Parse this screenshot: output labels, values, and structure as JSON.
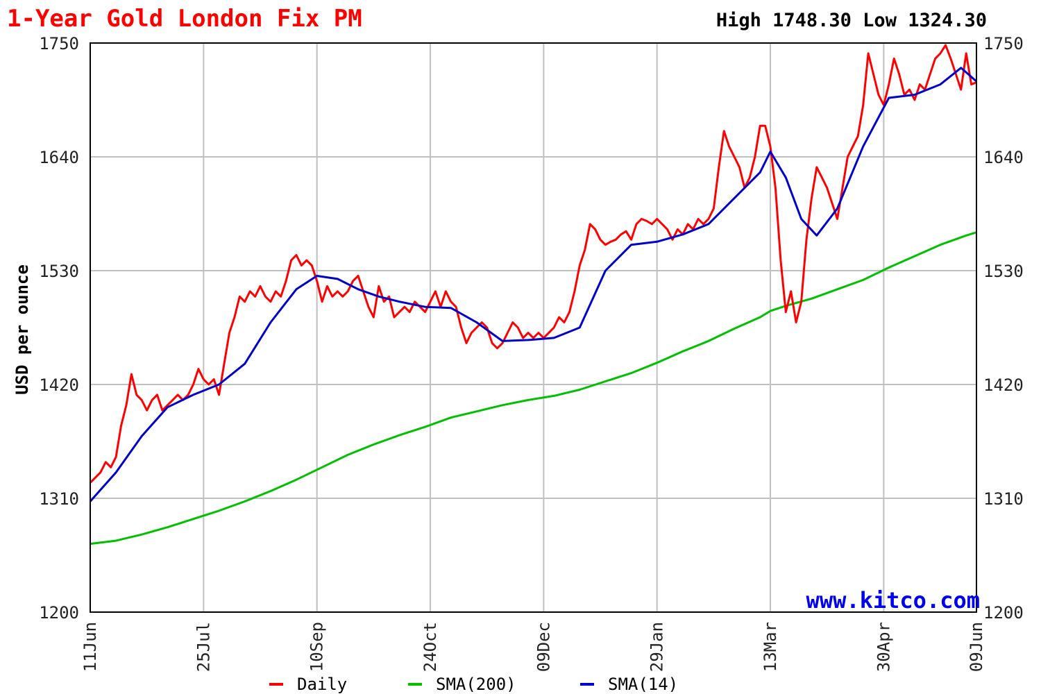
{
  "header": {
    "title": "1-Year Gold London Fix PM",
    "stats": "High 1748.30 Low 1324.30"
  },
  "watermark": "www.kitco.com",
  "colors": {
    "title": "#ff0000",
    "daily": "#ff0000",
    "sma200": "#00c000",
    "sma14": "#0000cc",
    "grid": "#c0c0c0",
    "watermark": "#0000ee",
    "border": "#000000"
  },
  "chart_data": {
    "type": "line",
    "title": "1-Year Gold London Fix PM",
    "ylabel": "USD per ounce",
    "xlabel": "",
    "ylim": [
      1200,
      1750
    ],
    "yticks": [
      "1750",
      "1640",
      "1530",
      "1420",
      "1310",
      "1200"
    ],
    "ytick_values": [
      1750,
      1640,
      1530,
      1420,
      1310,
      1200
    ],
    "xticks": [
      "11Jun",
      "25Jul",
      "10Sep",
      "24Oct",
      "09Dec",
      "29Jan",
      "13Mar",
      "30Apr",
      "09Jun"
    ],
    "xtick_values": [
      0,
      44,
      88,
      132,
      176,
      220,
      264,
      308,
      344
    ],
    "x_domain": [
      0,
      344
    ],
    "legend_position": "bottom",
    "grid": true,
    "series": [
      {
        "name": "Daily",
        "color": "#ff0000",
        "points": [
          [
            0,
            1325
          ],
          [
            2,
            1330
          ],
          [
            4,
            1335
          ],
          [
            6,
            1345
          ],
          [
            8,
            1340
          ],
          [
            10,
            1350
          ],
          [
            12,
            1380
          ],
          [
            14,
            1400
          ],
          [
            16,
            1430
          ],
          [
            18,
            1410
          ],
          [
            20,
            1405
          ],
          [
            22,
            1395
          ],
          [
            24,
            1405
          ],
          [
            26,
            1410
          ],
          [
            28,
            1395
          ],
          [
            30,
            1400
          ],
          [
            32,
            1405
          ],
          [
            34,
            1410
          ],
          [
            36,
            1405
          ],
          [
            38,
            1410
          ],
          [
            40,
            1420
          ],
          [
            42,
            1435
          ],
          [
            44,
            1425
          ],
          [
            46,
            1420
          ],
          [
            48,
            1425
          ],
          [
            50,
            1410
          ],
          [
            52,
            1440
          ],
          [
            54,
            1470
          ],
          [
            56,
            1485
          ],
          [
            58,
            1505
          ],
          [
            60,
            1500
          ],
          [
            62,
            1510
          ],
          [
            64,
            1505
          ],
          [
            66,
            1515
          ],
          [
            68,
            1505
          ],
          [
            70,
            1500
          ],
          [
            72,
            1510
          ],
          [
            74,
            1505
          ],
          [
            76,
            1520
          ],
          [
            78,
            1540
          ],
          [
            80,
            1545
          ],
          [
            82,
            1535
          ],
          [
            84,
            1540
          ],
          [
            86,
            1535
          ],
          [
            88,
            1520
          ],
          [
            90,
            1500
          ],
          [
            92,
            1515
          ],
          [
            94,
            1505
          ],
          [
            96,
            1510
          ],
          [
            98,
            1505
          ],
          [
            100,
            1510
          ],
          [
            102,
            1520
          ],
          [
            104,
            1525
          ],
          [
            106,
            1510
          ],
          [
            108,
            1495
          ],
          [
            110,
            1485
          ],
          [
            112,
            1515
          ],
          [
            114,
            1500
          ],
          [
            116,
            1505
          ],
          [
            118,
            1485
          ],
          [
            120,
            1490
          ],
          [
            122,
            1495
          ],
          [
            124,
            1490
          ],
          [
            126,
            1500
          ],
          [
            128,
            1495
          ],
          [
            130,
            1490
          ],
          [
            132,
            1500
          ],
          [
            134,
            1510
          ],
          [
            136,
            1495
          ],
          [
            138,
            1510
          ],
          [
            140,
            1500
          ],
          [
            142,
            1495
          ],
          [
            144,
            1475
          ],
          [
            146,
            1460
          ],
          [
            148,
            1470
          ],
          [
            150,
            1475
          ],
          [
            152,
            1480
          ],
          [
            154,
            1475
          ],
          [
            156,
            1460
          ],
          [
            158,
            1455
          ],
          [
            160,
            1460
          ],
          [
            162,
            1470
          ],
          [
            164,
            1480
          ],
          [
            166,
            1475
          ],
          [
            168,
            1465
          ],
          [
            170,
            1470
          ],
          [
            172,
            1465
          ],
          [
            174,
            1470
          ],
          [
            176,
            1465
          ],
          [
            178,
            1470
          ],
          [
            180,
            1475
          ],
          [
            182,
            1485
          ],
          [
            184,
            1480
          ],
          [
            186,
            1490
          ],
          [
            188,
            1510
          ],
          [
            190,
            1535
          ],
          [
            192,
            1550
          ],
          [
            194,
            1575
          ],
          [
            196,
            1570
          ],
          [
            198,
            1560
          ],
          [
            200,
            1555
          ],
          [
            202,
            1558
          ],
          [
            204,
            1560
          ],
          [
            206,
            1565
          ],
          [
            208,
            1568
          ],
          [
            210,
            1560
          ],
          [
            212,
            1575
          ],
          [
            214,
            1580
          ],
          [
            216,
            1578
          ],
          [
            218,
            1575
          ],
          [
            220,
            1580
          ],
          [
            222,
            1575
          ],
          [
            224,
            1570
          ],
          [
            226,
            1560
          ],
          [
            228,
            1570
          ],
          [
            230,
            1565
          ],
          [
            232,
            1575
          ],
          [
            234,
            1570
          ],
          [
            236,
            1580
          ],
          [
            238,
            1575
          ],
          [
            240,
            1580
          ],
          [
            242,
            1590
          ],
          [
            244,
            1630
          ],
          [
            246,
            1665
          ],
          [
            248,
            1650
          ],
          [
            250,
            1640
          ],
          [
            252,
            1630
          ],
          [
            254,
            1610
          ],
          [
            256,
            1620
          ],
          [
            258,
            1640
          ],
          [
            260,
            1670
          ],
          [
            262,
            1670
          ],
          [
            264,
            1650
          ],
          [
            266,
            1610
          ],
          [
            268,
            1540
          ],
          [
            270,
            1490
          ],
          [
            272,
            1510
          ],
          [
            274,
            1480
          ],
          [
            276,
            1500
          ],
          [
            278,
            1560
          ],
          [
            280,
            1600
          ],
          [
            282,
            1630
          ],
          [
            284,
            1620
          ],
          [
            286,
            1610
          ],
          [
            288,
            1595
          ],
          [
            290,
            1580
          ],
          [
            292,
            1610
          ],
          [
            294,
            1640
          ],
          [
            296,
            1650
          ],
          [
            298,
            1660
          ],
          [
            300,
            1690
          ],
          [
            302,
            1740
          ],
          [
            304,
            1720
          ],
          [
            306,
            1700
          ],
          [
            308,
            1690
          ],
          [
            310,
            1710
          ],
          [
            312,
            1735
          ],
          [
            314,
            1720
          ],
          [
            316,
            1700
          ],
          [
            318,
            1705
          ],
          [
            320,
            1695
          ],
          [
            322,
            1710
          ],
          [
            324,
            1705
          ],
          [
            326,
            1720
          ],
          [
            328,
            1735
          ],
          [
            330,
            1740
          ],
          [
            332,
            1748
          ],
          [
            334,
            1735
          ],
          [
            336,
            1720
          ],
          [
            338,
            1705
          ],
          [
            340,
            1740
          ],
          [
            342,
            1710
          ],
          [
            344,
            1712
          ]
        ]
      },
      {
        "name": "SMA(200)",
        "color": "#00c000",
        "points": [
          [
            0,
            1266
          ],
          [
            10,
            1269
          ],
          [
            20,
            1275
          ],
          [
            30,
            1282
          ],
          [
            40,
            1290
          ],
          [
            50,
            1298
          ],
          [
            60,
            1307
          ],
          [
            70,
            1317
          ],
          [
            80,
            1328
          ],
          [
            90,
            1340
          ],
          [
            100,
            1352
          ],
          [
            110,
            1362
          ],
          [
            120,
            1371
          ],
          [
            130,
            1379
          ],
          [
            140,
            1388
          ],
          [
            150,
            1394
          ],
          [
            160,
            1400
          ],
          [
            170,
            1405
          ],
          [
            180,
            1409
          ],
          [
            190,
            1415
          ],
          [
            200,
            1423
          ],
          [
            210,
            1431
          ],
          [
            220,
            1441
          ],
          [
            230,
            1452
          ],
          [
            240,
            1462
          ],
          [
            250,
            1474
          ],
          [
            260,
            1485
          ],
          [
            264,
            1491
          ],
          [
            270,
            1496
          ],
          [
            280,
            1503
          ],
          [
            290,
            1512
          ],
          [
            300,
            1521
          ],
          [
            310,
            1533
          ],
          [
            320,
            1544
          ],
          [
            330,
            1555
          ],
          [
            340,
            1564
          ],
          [
            344,
            1567
          ]
        ]
      },
      {
        "name": "SMA(14)",
        "color": "#0000cc",
        "points": [
          [
            0,
            1307
          ],
          [
            10,
            1335
          ],
          [
            20,
            1370
          ],
          [
            30,
            1398
          ],
          [
            40,
            1410
          ],
          [
            50,
            1420
          ],
          [
            60,
            1440
          ],
          [
            70,
            1480
          ],
          [
            80,
            1512
          ],
          [
            88,
            1525
          ],
          [
            96,
            1522
          ],
          [
            104,
            1512
          ],
          [
            112,
            1505
          ],
          [
            120,
            1500
          ],
          [
            130,
            1495
          ],
          [
            140,
            1494
          ],
          [
            150,
            1480
          ],
          [
            160,
            1462
          ],
          [
            170,
            1463
          ],
          [
            180,
            1465
          ],
          [
            190,
            1475
          ],
          [
            200,
            1530
          ],
          [
            210,
            1555
          ],
          [
            220,
            1558
          ],
          [
            230,
            1565
          ],
          [
            240,
            1575
          ],
          [
            250,
            1600
          ],
          [
            260,
            1625
          ],
          [
            264,
            1645
          ],
          [
            270,
            1620
          ],
          [
            276,
            1580
          ],
          [
            282,
            1564
          ],
          [
            290,
            1590
          ],
          [
            300,
            1650
          ],
          [
            310,
            1697
          ],
          [
            320,
            1700
          ],
          [
            330,
            1710
          ],
          [
            338,
            1726
          ],
          [
            344,
            1713
          ]
        ]
      }
    ]
  }
}
